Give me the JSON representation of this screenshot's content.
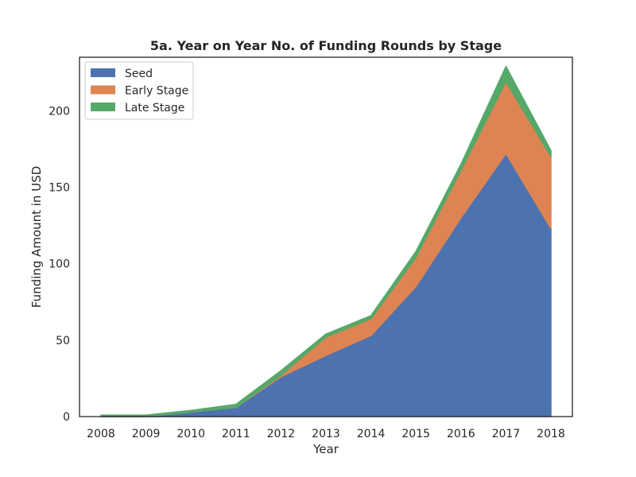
{
  "chart_data": {
    "type": "area",
    "stacked": true,
    "title": "5a. Year on Year No. of Funding Rounds by Stage",
    "xlabel": "Year",
    "ylabel": "Funding Amount in USD",
    "x": [
      "2008",
      "2009",
      "2010",
      "2011",
      "2012",
      "2013",
      "2014",
      "2015",
      "2016",
      "2017",
      "2018"
    ],
    "ylim": [
      0,
      235
    ],
    "yticks": [
      0,
      50,
      100,
      150,
      200
    ],
    "grid": false,
    "legend_position": "top-left",
    "series": [
      {
        "name": "Seed",
        "color": "#4c72b0",
        "values": [
          0,
          0,
          3,
          6,
          26,
          40,
          53,
          85,
          130,
          172,
          123
        ]
      },
      {
        "name": "Early Stage",
        "color": "#dd8452",
        "values": [
          0,
          0,
          0,
          0,
          1,
          12,
          11,
          19,
          31,
          47,
          47
        ]
      },
      {
        "name": "Late Stage",
        "color": "#55a868",
        "values": [
          1,
          1,
          1,
          2,
          3,
          2,
          2,
          4,
          4,
          10,
          4
        ]
      }
    ]
  }
}
